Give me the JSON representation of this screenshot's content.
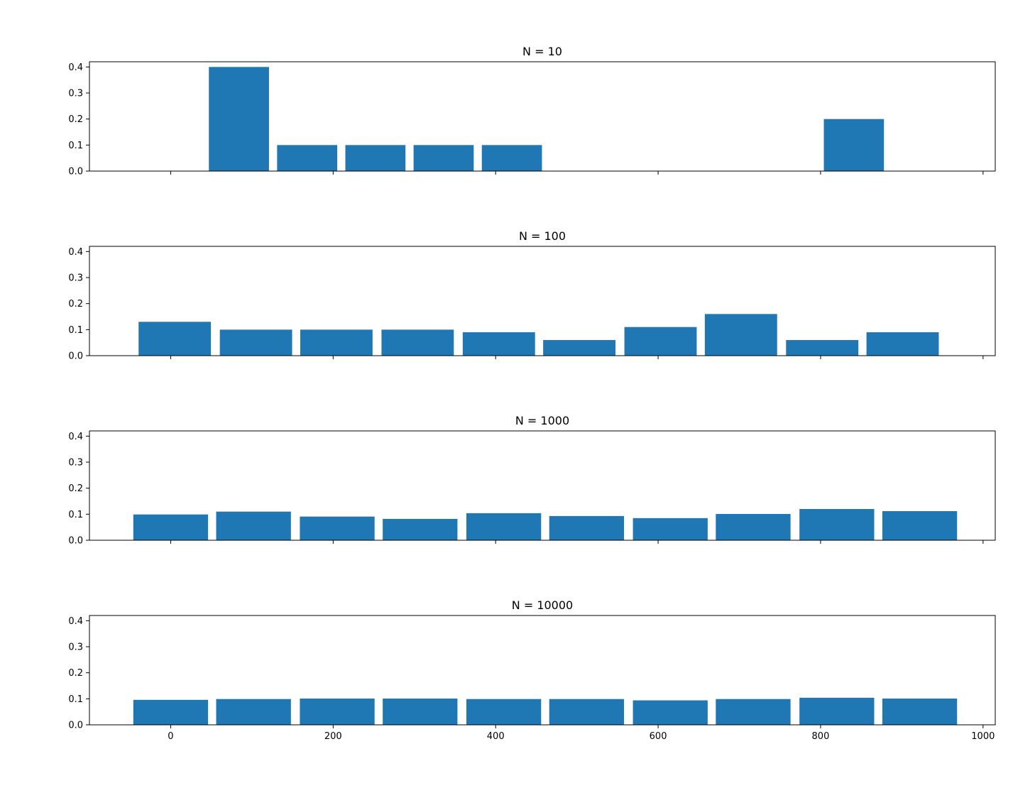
{
  "chart_data": [
    {
      "type": "bar",
      "title": "N = 10",
      "xlabel": "",
      "ylabel": "",
      "xlim": [
        -100,
        1015
      ],
      "ylim": [
        0,
        0.42
      ],
      "xticks": [
        0,
        200,
        400,
        600,
        800,
        1000
      ],
      "yticks": [
        0.0,
        0.1,
        0.2,
        0.3,
        0.4
      ],
      "show_x_tick_labels": false,
      "grid": false,
      "color": "#1f77b4",
      "bars": [
        {
          "x": 84,
          "width": 74,
          "value": 0.4
        },
        {
          "x": 168,
          "width": 74,
          "value": 0.1
        },
        {
          "x": 252,
          "width": 74,
          "value": 0.1
        },
        {
          "x": 336,
          "width": 74,
          "value": 0.1
        },
        {
          "x": 420,
          "width": 74,
          "value": 0.1
        },
        {
          "x": 841,
          "width": 74,
          "value": 0.2
        }
      ]
    },
    {
      "type": "bar",
      "title": "N = 100",
      "xlabel": "",
      "ylabel": "",
      "xlim": [
        -100,
        1015
      ],
      "ylim": [
        0,
        0.42
      ],
      "xticks": [
        0,
        200,
        400,
        600,
        800,
        1000
      ],
      "yticks": [
        0.0,
        0.1,
        0.2,
        0.3,
        0.4
      ],
      "show_x_tick_labels": false,
      "grid": false,
      "color": "#1f77b4",
      "bars": [
        {
          "x": 5,
          "width": 89,
          "value": 0.13
        },
        {
          "x": 105,
          "width": 89,
          "value": 0.1
        },
        {
          "x": 204,
          "width": 89,
          "value": 0.1
        },
        {
          "x": 304,
          "width": 89,
          "value": 0.1
        },
        {
          "x": 404,
          "width": 89,
          "value": 0.09
        },
        {
          "x": 503,
          "width": 89,
          "value": 0.06
        },
        {
          "x": 603,
          "width": 89,
          "value": 0.11
        },
        {
          "x": 702,
          "width": 89,
          "value": 0.16
        },
        {
          "x": 802,
          "width": 89,
          "value": 0.06
        },
        {
          "x": 901,
          "width": 89,
          "value": 0.09
        }
      ]
    },
    {
      "type": "bar",
      "title": "N = 1000",
      "xlabel": "",
      "ylabel": "",
      "xlim": [
        -100,
        1015
      ],
      "ylim": [
        0,
        0.42
      ],
      "xticks": [
        0,
        200,
        400,
        600,
        800,
        1000
      ],
      "yticks": [
        0.0,
        0.1,
        0.2,
        0.3,
        0.4
      ],
      "show_x_tick_labels": false,
      "grid": false,
      "color": "#1f77b4",
      "bars": [
        {
          "x": 0,
          "width": 92,
          "value": 0.099
        },
        {
          "x": 102,
          "width": 92,
          "value": 0.11
        },
        {
          "x": 205,
          "width": 92,
          "value": 0.091
        },
        {
          "x": 307,
          "width": 92,
          "value": 0.082
        },
        {
          "x": 410,
          "width": 92,
          "value": 0.104
        },
        {
          "x": 512,
          "width": 92,
          "value": 0.093
        },
        {
          "x": 615,
          "width": 92,
          "value": 0.085
        },
        {
          "x": 717,
          "width": 92,
          "value": 0.101
        },
        {
          "x": 820,
          "width": 92,
          "value": 0.12
        },
        {
          "x": 922,
          "width": 92,
          "value": 0.112
        }
      ]
    },
    {
      "type": "bar",
      "title": "N = 10000",
      "xlabel": "",
      "ylabel": "",
      "xlim": [
        -100,
        1015
      ],
      "ylim": [
        0,
        0.42
      ],
      "xticks": [
        0,
        200,
        400,
        600,
        800,
        1000
      ],
      "yticks": [
        0.0,
        0.1,
        0.2,
        0.3,
        0.4
      ],
      "show_x_tick_labels": true,
      "grid": false,
      "color": "#1f77b4",
      "bars": [
        {
          "x": 0,
          "width": 92,
          "value": 0.096
        },
        {
          "x": 102,
          "width": 92,
          "value": 0.099
        },
        {
          "x": 205,
          "width": 92,
          "value": 0.101
        },
        {
          "x": 307,
          "width": 92,
          "value": 0.101
        },
        {
          "x": 410,
          "width": 92,
          "value": 0.099
        },
        {
          "x": 512,
          "width": 92,
          "value": 0.099
        },
        {
          "x": 615,
          "width": 92,
          "value": 0.094
        },
        {
          "x": 717,
          "width": 92,
          "value": 0.099
        },
        {
          "x": 820,
          "width": 92,
          "value": 0.104
        },
        {
          "x": 922,
          "width": 92,
          "value": 0.101
        }
      ]
    }
  ]
}
